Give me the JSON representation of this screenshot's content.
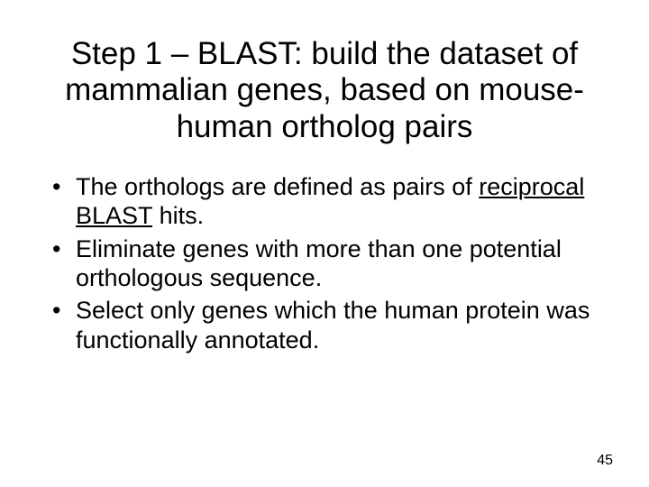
{
  "title": "Step 1 – BLAST: build the dataset of mammalian genes, based on mouse-human ortholog pairs",
  "bullets": [
    {
      "pre": "The orthologs are defined as pairs of ",
      "underlined": "reciprocal BLAST",
      "post": " hits."
    },
    {
      "pre": "Eliminate genes with more than one potential orthologous sequence.",
      "underlined": "",
      "post": ""
    },
    {
      "pre": "Select only genes which the human protein was functionally annotated.",
      "underlined": "",
      "post": ""
    }
  ],
  "page_number": "45",
  "colors": {
    "background": "#ffffff",
    "text": "#000000"
  },
  "typography": {
    "title_fontsize": 35,
    "body_fontsize": 27,
    "pagenum_fontsize": 16,
    "font_family": "Arial"
  }
}
